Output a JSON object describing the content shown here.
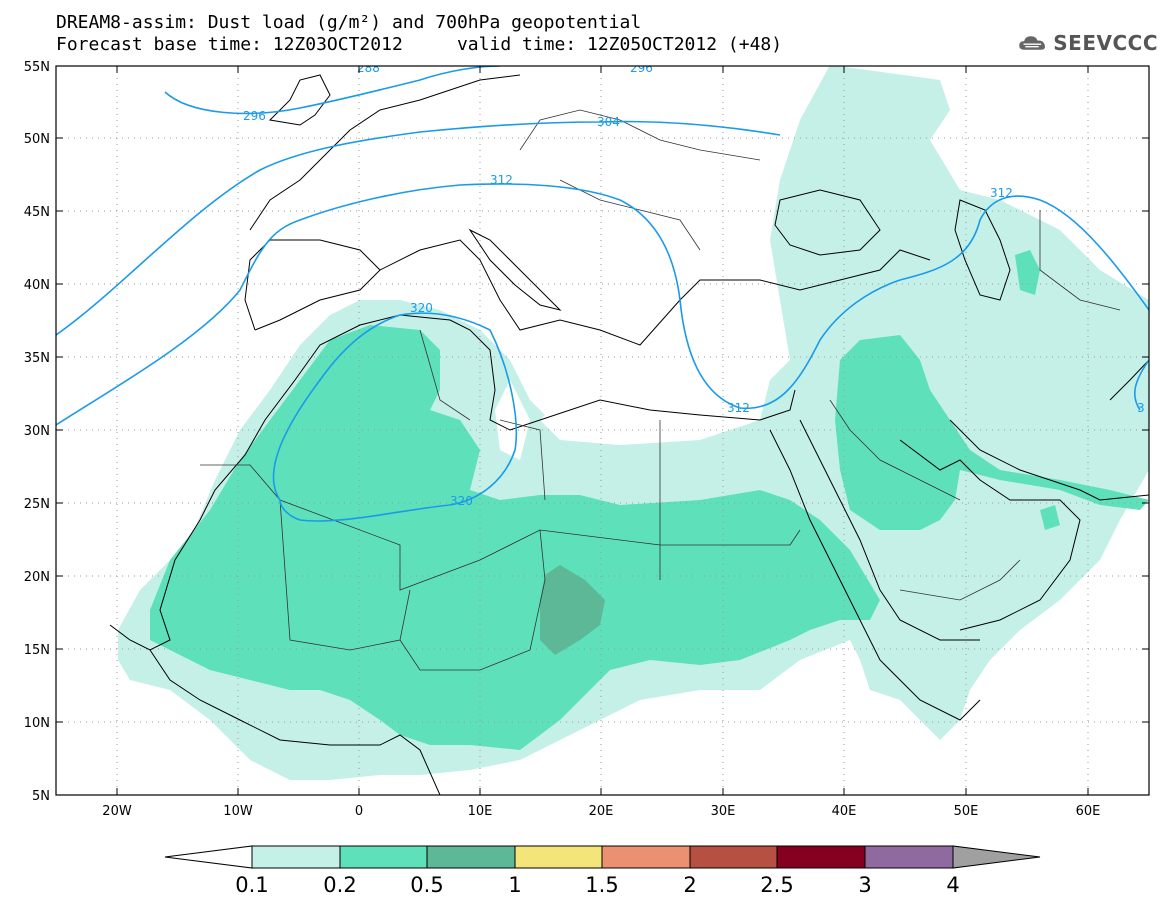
{
  "header": {
    "title_line1": "DREAM8-assim: Dust load (g/m²) and 700hPa geopotential",
    "title_line2_left": "Forecast base time: 12Z03OCT2012",
    "title_line2_right": "valid time: 12Z05OCT2012 (+48)",
    "logo_text": "SEEVCCC",
    "logo_icon": "cloud-icon"
  },
  "map": {
    "lon_range": [
      -25,
      65
    ],
    "lat_range": [
      5,
      55
    ],
    "lat_labels": [
      "55N",
      "50N",
      "45N",
      "40N",
      "35N",
      "30N",
      "25N",
      "20N",
      "15N",
      "10N",
      "5N"
    ],
    "lon_labels": [
      "20W",
      "10W",
      "0",
      "10E",
      "20E",
      "30E",
      "40E",
      "50E",
      "60E"
    ],
    "contour_labels": [
      "288",
      "296",
      "296",
      "304",
      "312",
      "312",
      "320",
      "320",
      "312",
      "3"
    ],
    "dust_colors": {
      "0.1": "#c5f0e8",
      "0.2": "#5ee0ba",
      "0.5": "#5db898"
    },
    "contour_color": "#1a9bea"
  },
  "colorbar": {
    "labels": [
      "0.1",
      "0.2",
      "0.5",
      "1",
      "1.5",
      "2",
      "2.5",
      "3",
      "4"
    ],
    "colors": [
      "#ffffff",
      "#c5f0e8",
      "#5ee0ba",
      "#5db898",
      "#f4e57a",
      "#eb9070",
      "#b55042",
      "#850020",
      "#8e6aa0",
      "#a0a0a0"
    ]
  }
}
